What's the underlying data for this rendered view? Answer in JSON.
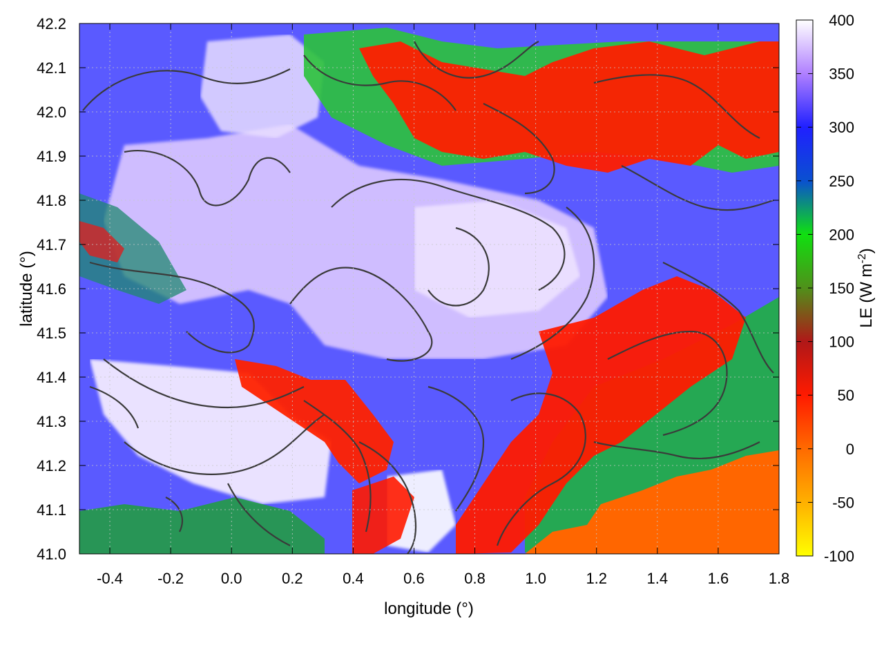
{
  "chart_data": {
    "type": "heatmap",
    "xlabel": "longitude (°)",
    "ylabel": "latitude (°)",
    "xlim": [
      -0.5,
      1.8
    ],
    "ylim": [
      41.0,
      42.2
    ],
    "x_ticks": [
      "-0.4",
      "-0.2",
      "0.0",
      "0.2",
      "0.4",
      "0.6",
      "0.8",
      "1.0",
      "1.2",
      "1.4",
      "1.6",
      "1.8"
    ],
    "x_tick_values": [
      -0.4,
      -0.2,
      0.0,
      0.2,
      0.4,
      0.6,
      0.8,
      1.0,
      1.2,
      1.4,
      1.6,
      1.8
    ],
    "y_ticks": [
      "41.0",
      "41.1",
      "41.2",
      "41.3",
      "41.4",
      "41.5",
      "41.6",
      "41.7",
      "41.8",
      "41.9",
      "42.0",
      "42.1",
      "42.2"
    ],
    "y_tick_values": [
      41.0,
      41.1,
      41.2,
      41.3,
      41.4,
      41.5,
      41.6,
      41.7,
      41.8,
      41.9,
      42.0,
      42.1,
      42.2
    ],
    "colorbar": {
      "label": "LE (W m",
      "label_sup": "-2",
      "label_end": ")",
      "range": [
        -100,
        400
      ],
      "ticks": [
        "400",
        "350",
        "300",
        "250",
        "200",
        "150",
        "100",
        "50",
        "0",
        "-50",
        "-100"
      ],
      "tick_values": [
        400,
        350,
        300,
        250,
        200,
        150,
        100,
        50,
        0,
        -50,
        -100
      ],
      "stops": [
        {
          "value": -100,
          "color": "#ffff00"
        },
        {
          "value": -50,
          "color": "#ffb000"
        },
        {
          "value": 0,
          "color": "#ff6a00"
        },
        {
          "value": 50,
          "color": "#ff1a00"
        },
        {
          "value": 100,
          "color": "#b01818"
        },
        {
          "value": 150,
          "color": "#50901a"
        },
        {
          "value": 200,
          "color": "#10e010"
        },
        {
          "value": 250,
          "color": "#0a50d0"
        },
        {
          "value": 300,
          "color": "#2020ff"
        },
        {
          "value": 350,
          "color": "#b080ff"
        },
        {
          "value": 400,
          "color": "#ffffff"
        }
      ]
    },
    "grid": true,
    "contours": true
  }
}
